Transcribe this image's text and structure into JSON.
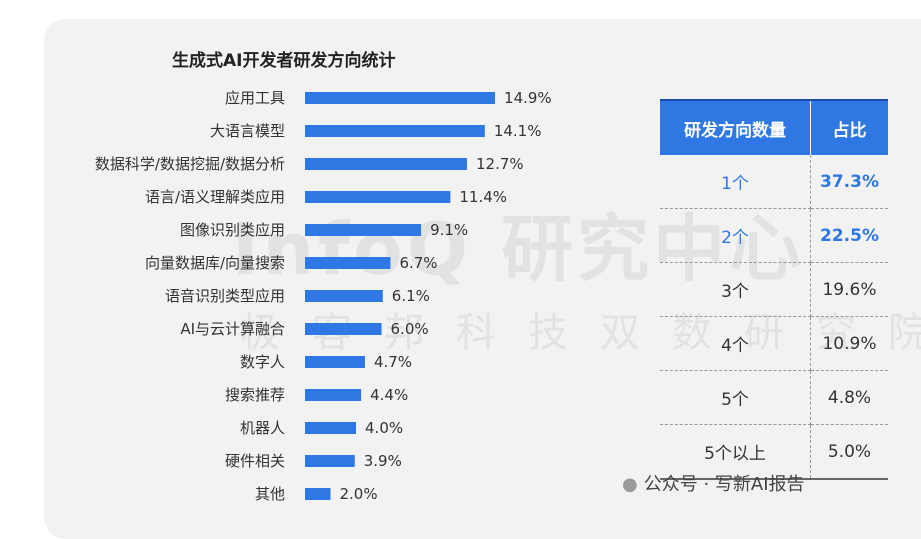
{
  "watermark": {
    "main": "InfoQ 研究中心",
    "sub": "极客邦科技双数研究院"
  },
  "chart_data": {
    "type": "bar",
    "orientation": "horizontal",
    "title": "生成式AI开发者研发方向统计",
    "categories": [
      "应用工具",
      "大语言模型",
      "数据科学/数据挖掘/数据分析",
      "语言/语义理解类应用",
      "图像识别类应用",
      "向量数据库/向量搜索",
      "语音识别类型应用",
      "AI与云计算融合",
      "数字人",
      "搜索推荐",
      "机器人",
      "硬件相关",
      "其他"
    ],
    "values": [
      14.9,
      14.1,
      12.7,
      11.4,
      9.1,
      6.7,
      6.1,
      6.0,
      4.7,
      4.4,
      4.0,
      3.9,
      2.0
    ],
    "value_labels": [
      "14.9%",
      "14.1%",
      "12.7%",
      "11.4%",
      "9.1%",
      "6.7%",
      "6.1%",
      "6.0%",
      "4.7%",
      "4.4%",
      "4.0%",
      "3.9%",
      "2.0%"
    ],
    "unit": "%",
    "xlim": [
      0,
      15
    ],
    "bar_color": "#2f78e4"
  },
  "table": {
    "headers": [
      "研发方向数量",
      "占比"
    ],
    "rows": [
      [
        "1个",
        "37.3%"
      ],
      [
        "2个",
        "22.5%"
      ],
      [
        "3个",
        "19.6%"
      ],
      [
        "4个",
        "10.9%"
      ],
      [
        "5个",
        "4.8%"
      ],
      [
        "5个以上",
        "5.0%"
      ]
    ],
    "highlight_rows": 2,
    "header_color": "#2f78e4"
  },
  "footer": {
    "icon": "wechat-icon",
    "text": "公众号 · 写新AI报告"
  }
}
